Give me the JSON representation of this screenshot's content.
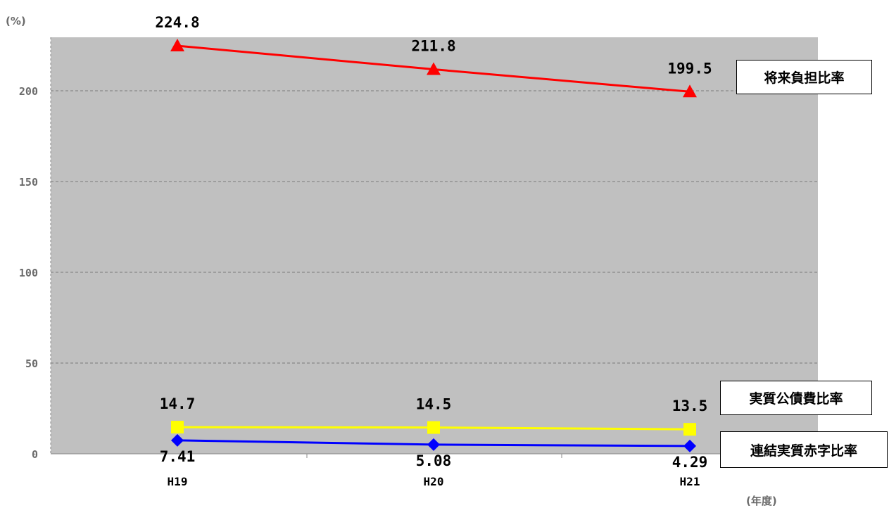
{
  "chart_data": {
    "type": "line",
    "y_unit": "(%)",
    "x_unit": "(年度)",
    "categories": [
      "H19",
      "H20",
      "H21"
    ],
    "ylim": [
      0,
      230
    ],
    "yticks": [
      0,
      50,
      100,
      150,
      200
    ],
    "grid": true,
    "plot_background": "#c0c0c0",
    "series": [
      {
        "name": "将来負担比率",
        "values": [
          224.8,
          211.8,
          199.5
        ],
        "labels": [
          "224.8",
          "211.8",
          "199.5"
        ],
        "color": "#ff0000",
        "marker": "triangle",
        "label_position": "above"
      },
      {
        "name": "実質公債費比率",
        "values": [
          14.7,
          14.5,
          13.5
        ],
        "labels": [
          "14.7",
          "14.5",
          "13.5"
        ],
        "color": "#ffff00",
        "marker": "square",
        "label_position": "above"
      },
      {
        "name": "連結実質赤字比率",
        "values": [
          7.41,
          5.08,
          4.29
        ],
        "labels": [
          "7.41",
          "5.08",
          "4.29"
        ],
        "color": "#0000ff",
        "marker": "diamond",
        "label_position": "below"
      }
    ]
  }
}
